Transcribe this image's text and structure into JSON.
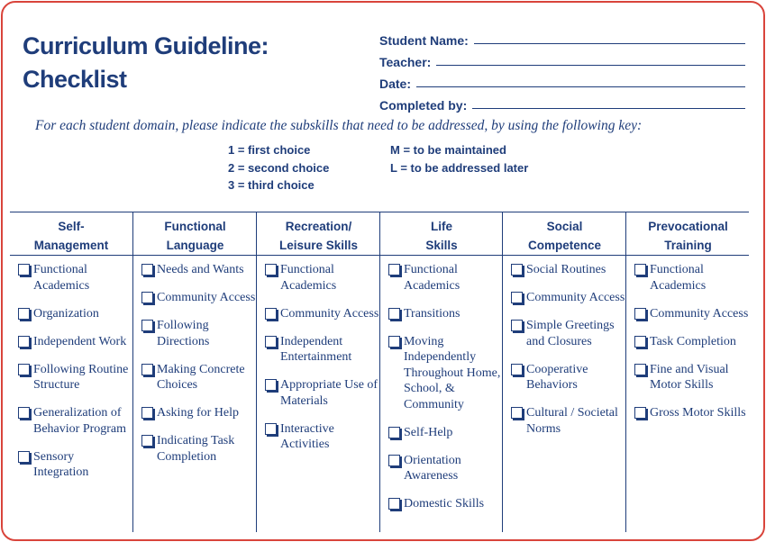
{
  "title_line1": "Curriculum Guideline:",
  "title_line2": "Checklist",
  "fields": [
    "Student Name:",
    "Teacher:",
    "Date:",
    "Completed by:"
  ],
  "instructions": "For each student domain, please indicate the subskills that need to be addressed, by using the following key:",
  "key_left": [
    "1 = first choice",
    "2 = second choice",
    "3 = third choice"
  ],
  "key_right": [
    "M = to be maintained",
    "L = to be addressed later"
  ],
  "columns": [
    {
      "h1": "Self-",
      "h2": "Management",
      "items": [
        "Functional Academics",
        "Organization",
        "Independent Work",
        "Following Routine Structure",
        "Generalization of Behavior Program",
        "Sensory Integration"
      ]
    },
    {
      "h1": "Functional",
      "h2": "Language",
      "items": [
        "Needs and Wants",
        "Community Access",
        "Following Directions",
        "Making Concrete Choices",
        "Asking for Help",
        "Indicating Task Completion"
      ]
    },
    {
      "h1": "Recreation/",
      "h2": "Leisure Skills",
      "items": [
        "Functional Academics",
        "Community Access",
        "Independent Entertainment",
        "Appropriate Use of Materials",
        "Interactive Activities"
      ]
    },
    {
      "h1": "Life",
      "h2": "Skills",
      "items": [
        "Functional Academics",
        "Transitions",
        "Moving Independently Throughout Home, School, & Community",
        "Self-Help",
        "Orientation Awareness",
        "Domestic Skills"
      ]
    },
    {
      "h1": "Social",
      "h2": "Competence",
      "items": [
        "Social Routines",
        "Community Access",
        "Simple Greetings and Closures",
        "Cooperative Behaviors",
        "Cultural / Societal Norms"
      ]
    },
    {
      "h1": "Prevocational",
      "h2": "Training",
      "items": [
        "Functional Academics",
        "Community Access",
        "Task Completion",
        "Fine and Visual Motor Skills",
        "Gross Motor Skills"
      ]
    }
  ]
}
